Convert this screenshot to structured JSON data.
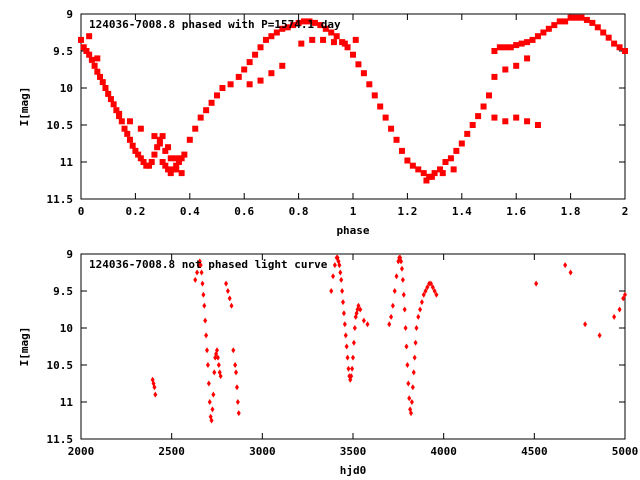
{
  "chart_data": [
    {
      "type": "scatter",
      "title": "124036-7008.8 phased with P=1574.1 day",
      "xlabel": "phase",
      "ylabel": "I[mag]",
      "xlim": [
        0,
        2
      ],
      "ylim": [
        11.5,
        9
      ],
      "y_inverted": true,
      "xticks": [
        "0",
        "0.2",
        "0.4",
        "0.6",
        "0.8",
        "1",
        "1.2",
        "1.4",
        "1.6",
        "1.8",
        "2"
      ],
      "yticks": [
        "9",
        "9.5",
        "10",
        "10.5",
        "11",
        "11.5"
      ],
      "grid": false,
      "legend": "none",
      "marker": "filled-square",
      "color": "#ff0000",
      "series": [
        {
          "x": [
            0.0,
            0.01,
            0.02,
            0.03,
            0.04,
            0.05,
            0.06,
            0.07,
            0.08,
            0.09,
            0.1,
            0.11,
            0.12,
            0.13,
            0.14,
            0.15,
            0.16,
            0.17,
            0.18,
            0.19,
            0.2,
            0.21,
            0.22,
            0.23,
            0.24,
            0.25,
            0.26,
            0.27,
            0.28,
            0.29,
            0.3,
            0.31,
            0.32,
            0.33,
            0.34,
            0.35,
            0.36,
            0.37,
            0.38,
            0.4,
            0.42,
            0.44,
            0.46,
            0.48,
            0.5,
            0.52,
            0.55,
            0.58,
            0.6,
            0.62,
            0.64,
            0.66,
            0.68,
            0.7,
            0.72,
            0.74,
            0.76,
            0.78,
            0.8,
            0.82,
            0.84,
            0.86,
            0.88,
            0.9,
            0.92,
            0.94,
            0.96,
            0.98,
            1.0,
            1.02,
            1.04,
            1.06,
            1.08,
            1.1,
            1.12,
            1.14,
            1.16,
            1.18,
            1.2,
            1.22,
            1.24,
            1.26,
            1.28,
            1.3,
            1.32,
            1.34,
            1.36,
            1.38,
            1.4,
            1.42,
            1.44,
            1.46,
            1.48,
            1.5,
            1.52,
            1.54,
            1.56,
            1.58,
            1.6,
            1.62,
            1.64,
            1.66,
            1.68,
            1.7,
            1.72,
            1.74,
            1.76,
            1.78,
            1.8,
            1.82,
            1.84,
            1.86,
            1.88,
            1.9,
            1.92,
            1.94,
            1.96,
            1.98,
            2.0,
            0.27,
            0.29,
            0.31,
            0.33,
            0.35,
            0.37,
            0.81,
            0.85,
            0.89,
            0.93,
            0.97,
            1.01,
            1.52,
            1.56,
            1.6,
            1.64,
            1.52,
            1.56,
            1.6,
            1.64,
            1.68,
            1.27,
            1.29,
            1.33,
            1.37,
            0.14,
            0.18,
            0.22,
            0.3,
            0.32,
            0.35,
            0.62,
            0.66,
            0.7,
            0.74,
            0.03,
            0.06
          ],
          "y": [
            9.35,
            9.45,
            9.5,
            9.55,
            9.62,
            9.7,
            9.78,
            9.85,
            9.92,
            10.0,
            10.08,
            10.15,
            10.22,
            10.3,
            10.38,
            10.45,
            10.55,
            10.62,
            10.7,
            10.78,
            10.85,
            10.9,
            10.95,
            11.0,
            11.05,
            11.05,
            11.0,
            10.9,
            10.8,
            10.7,
            11.0,
            11.05,
            11.1,
            11.15,
            11.1,
            11.05,
            11.0,
            10.95,
            10.9,
            10.7,
            10.55,
            10.4,
            10.3,
            10.2,
            10.1,
            10.0,
            9.95,
            9.85,
            9.75,
            9.65,
            9.55,
            9.45,
            9.35,
            9.3,
            9.25,
            9.2,
            9.18,
            9.15,
            9.12,
            9.1,
            9.1,
            9.12,
            9.15,
            9.2,
            9.25,
            9.3,
            9.38,
            9.45,
            9.55,
            9.68,
            9.8,
            9.95,
            10.1,
            10.25,
            10.4,
            10.55,
            10.7,
            10.85,
            10.98,
            11.05,
            11.1,
            11.15,
            11.2,
            11.15,
            11.1,
            11.0,
            10.95,
            10.85,
            10.75,
            10.62,
            10.5,
            10.38,
            10.25,
            10.1,
            9.5,
            9.45,
            9.45,
            9.45,
            9.42,
            9.4,
            9.38,
            9.35,
            9.3,
            9.25,
            9.2,
            9.15,
            9.1,
            9.1,
            9.05,
            9.05,
            9.05,
            9.08,
            9.12,
            9.18,
            9.25,
            9.32,
            9.4,
            9.45,
            9.5,
            10.65,
            10.75,
            10.85,
            10.95,
            11.1,
            11.15,
            9.4,
            9.35,
            9.35,
            9.38,
            9.4,
            9.35,
            9.85,
            9.75,
            9.7,
            9.6,
            10.4,
            10.45,
            10.4,
            10.45,
            10.5,
            11.25,
            11.2,
            11.15,
            11.1,
            10.35,
            10.45,
            10.55,
            10.65,
            10.8,
            10.95,
            9.95,
            9.9,
            9.8,
            9.7,
            9.3,
            9.6
          ]
        }
      ]
    },
    {
      "type": "scatter",
      "title": "124036-7008.8 not phased light curve",
      "xlabel": "hjd0",
      "ylabel": "I[mag]",
      "xlim": [
        2000,
        5000
      ],
      "ylim": [
        11.5,
        9
      ],
      "y_inverted": true,
      "xticks": [
        "2000",
        "2500",
        "3000",
        "3500",
        "4000",
        "4500",
        "5000"
      ],
      "yticks": [
        "9",
        "9.5",
        "10",
        "10.5",
        "11",
        "11.5"
      ],
      "grid": false,
      "legend": "none",
      "marker": "filled-diamond",
      "color": "#ff0000",
      "series": [
        {
          "x": [
            2395,
            2400,
            2405,
            2410,
            2630,
            2640,
            2650,
            2655,
            2660,
            2665,
            2670,
            2675,
            2680,
            2685,
            2690,
            2695,
            2700,
            2705,
            2710,
            2715,
            2720,
            2725,
            2730,
            2735,
            2740,
            2745,
            2750,
            2755,
            2760,
            2765,
            2770,
            2800,
            2810,
            2820,
            2830,
            2840,
            2850,
            2855,
            2860,
            2865,
            2870,
            3380,
            3390,
            3400,
            3410,
            3415,
            3420,
            3425,
            3430,
            3435,
            3440,
            3445,
            3450,
            3455,
            3460,
            3465,
            3470,
            3475,
            3480,
            3485,
            3490,
            3495,
            3500,
            3505,
            3510,
            3515,
            3520,
            3525,
            3530,
            3540,
            3560,
            3580,
            3700,
            3710,
            3720,
            3730,
            3740,
            3750,
            3755,
            3760,
            3765,
            3770,
            3775,
            3780,
            3785,
            3790,
            3795,
            3800,
            3805,
            3810,
            3815,
            3820,
            3825,
            3830,
            3835,
            3840,
            3845,
            3850,
            3860,
            3870,
            3880,
            3890,
            3900,
            3910,
            3920,
            3930,
            3940,
            3950,
            3960,
            4510,
            4670,
            4700,
            4780,
            4860,
            4940,
            4970,
            4990,
            5000
          ],
          "y": [
            10.7,
            10.75,
            10.8,
            10.9,
            9.35,
            9.25,
            9.15,
            9.1,
            9.15,
            9.25,
            9.4,
            9.55,
            9.7,
            9.9,
            10.1,
            10.3,
            10.5,
            10.75,
            11.0,
            11.2,
            11.25,
            11.1,
            10.9,
            10.6,
            10.4,
            10.35,
            10.3,
            10.4,
            10.5,
            10.6,
            10.65,
            9.4,
            9.5,
            9.6,
            9.7,
            10.3,
            10.5,
            10.6,
            10.8,
            11.0,
            11.15,
            9.5,
            9.3,
            9.15,
            9.05,
            9.05,
            9.1,
            9.15,
            9.25,
            9.35,
            9.5,
            9.65,
            9.8,
            9.95,
            10.1,
            10.25,
            10.4,
            10.55,
            10.65,
            10.7,
            10.65,
            10.55,
            10.4,
            10.2,
            10.0,
            9.85,
            9.8,
            9.75,
            9.7,
            9.75,
            9.9,
            9.95,
            9.95,
            9.85,
            9.7,
            9.5,
            9.3,
            9.1,
            9.05,
            9.05,
            9.1,
            9.2,
            9.35,
            9.55,
            9.75,
            10.0,
            10.25,
            10.5,
            10.75,
            10.95,
            11.1,
            11.15,
            11.0,
            10.8,
            10.6,
            10.4,
            10.2,
            10.0,
            9.85,
            9.75,
            9.65,
            9.55,
            9.5,
            9.45,
            9.4,
            9.4,
            9.45,
            9.5,
            9.55,
            9.4,
            9.15,
            9.25,
            9.95,
            10.1,
            9.85,
            9.75,
            9.6,
            9.55
          ]
        }
      ]
    }
  ]
}
